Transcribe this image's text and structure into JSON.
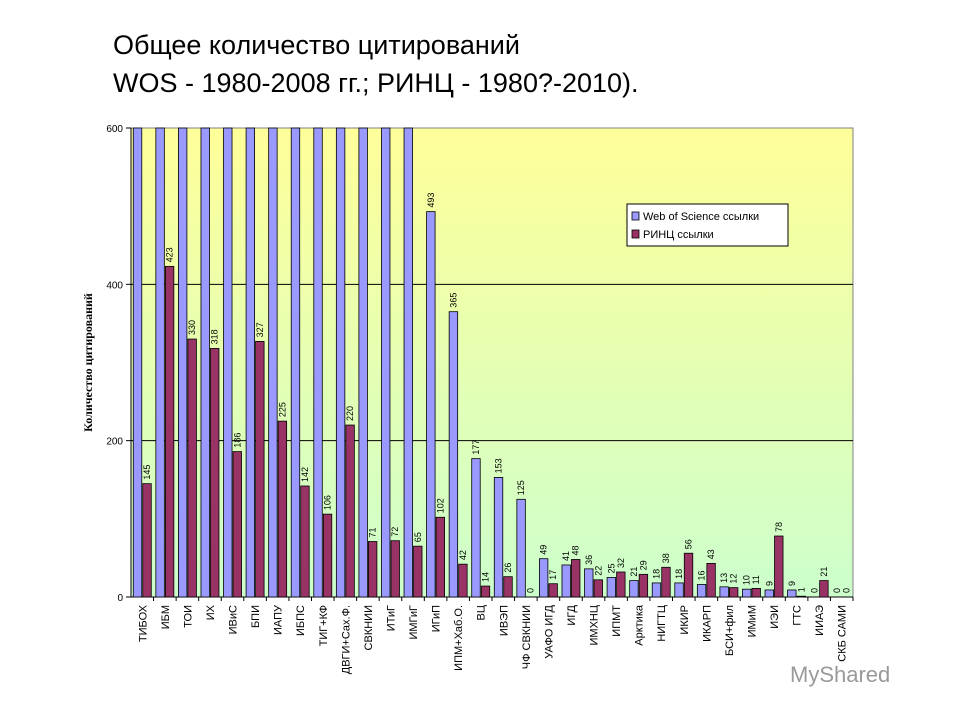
{
  "slide": {
    "title_line1": "Общее количество цитирований",
    "title_line2": "WOS - 1980-2008 гг.; РИНЦ - 1980?-2010).",
    "watermark": "MyShared"
  },
  "chart_data": {
    "type": "bar",
    "ylabel": "Количество цитирований",
    "ylim": [
      0,
      600
    ],
    "yticks": [
      0,
      200,
      400,
      600
    ],
    "legend_position": "top-right",
    "categories": [
      "ТИБОХ",
      "ИБМ",
      "ТОИ",
      "ИХ",
      "ИВиС",
      "БПИ",
      "ИАПУ",
      "ИБПС",
      "ТИГ+КФ",
      "ДВГИ+Сах.Ф.",
      "СВКНИИ",
      "ИТиГ",
      "ИМГиГ",
      "ИГиП",
      "ИПМ+Хаб.О.",
      "ВЦ",
      "ИВЭП",
      "ЧФ СВКНИИ",
      "УАФО ИГД",
      "ИГД",
      "ИМХНЦ",
      "ИПМТ",
      "Арктика",
      "НИГТЦ",
      "ИКИР",
      "ИКАРП",
      "БСИ+фил",
      "ИМиМ",
      "ИЭИ",
      "ГТС",
      "ИИАЭ",
      "СКБ САМИ"
    ],
    "series": [
      {
        "name": "Web of Science ссылки",
        "color": "#9999ff",
        "values": [
          600,
          600,
          600,
          600,
          600,
          600,
          600,
          600,
          600,
          600,
          600,
          600,
          600,
          493,
          365,
          177,
          153,
          125,
          49,
          41,
          36,
          25,
          21,
          18,
          18,
          16,
          13,
          10,
          9,
          9,
          0,
          0
        ],
        "labels": [
          "",
          "",
          "",
          "",
          "",
          "",
          "",
          "",
          "",
          "",
          "",
          "",
          "",
          "493",
          "365",
          "177",
          "153",
          "125",
          "49",
          "41",
          "36",
          "25",
          "21",
          "18",
          "18",
          "16",
          "13",
          "10",
          "9",
          "9",
          "0",
          "0"
        ]
      },
      {
        "name": "РИНЦ ссылки",
        "color": "#993366",
        "values": [
          145,
          423,
          330,
          318,
          186,
          327,
          225,
          142,
          106,
          220,
          71,
          72,
          65,
          102,
          42,
          14,
          26,
          0,
          17,
          48,
          22,
          32,
          29,
          38,
          56,
          43,
          12,
          11,
          78,
          1,
          21,
          0
        ],
        "labels": [
          "145",
          "423",
          "330",
          "318",
          "186",
          "327",
          "225",
          "142",
          "106",
          "220",
          "71",
          "72",
          "65",
          "102",
          "42",
          "14",
          "26",
          "0",
          "17",
          "48",
          "22",
          "32",
          "29",
          "38",
          "56",
          "43",
          "12",
          "11",
          "78",
          "1",
          "21",
          "0"
        ]
      }
    ],
    "colors": {
      "bg_top": "#ffff99",
      "bg_bottom": "#ccffcc"
    }
  }
}
